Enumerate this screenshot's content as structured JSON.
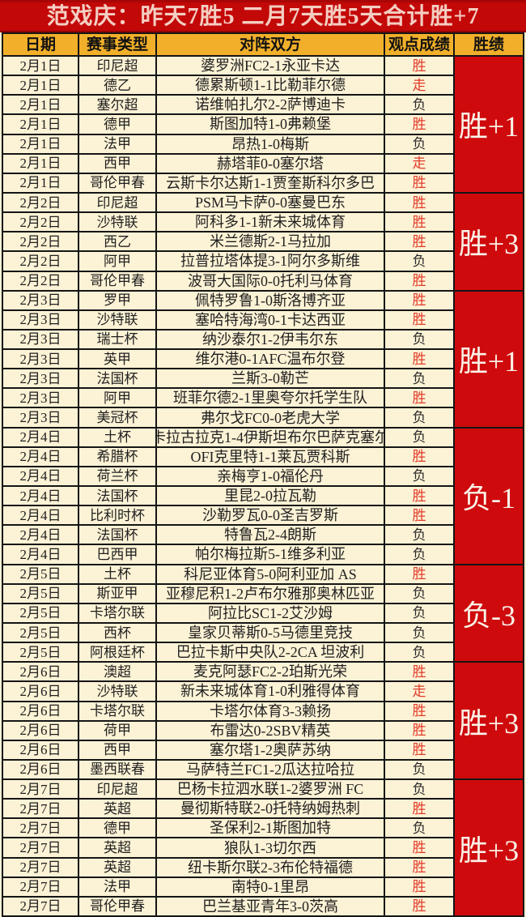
{
  "title": "范戏庆：昨天7胜5  二月7天胜5天合计胜+7",
  "colors": {
    "title_bg": "#C30808",
    "title_text": "#F4CEC2",
    "header_bg": "#F2B02A",
    "row_bg": "#FCF2D5",
    "grid_line": "#151515",
    "streak_block_bg": "#CF0A0D",
    "streak_block_text": "#FAF3E8",
    "result_win_text": "#E23A28",
    "result_loss_text": "#2A2A2A"
  },
  "chart_data": {
    "type": "table",
    "title": "范戏庆：昨天7胜5  二月7天胜5天合计胜+7",
    "columns": [
      "日期",
      "赛事类型",
      "对阵双方",
      "观点成绩",
      "胜绩"
    ],
    "rows": [
      {
        "date": "2月1日",
        "league": "印尼超",
        "match": "婆罗洲FC2-1永亚卡达",
        "result": "胜",
        "result_color": "red"
      },
      {
        "date": "2月1日",
        "league": "德乙",
        "match": "德累斯顿1-1比勒菲尔德",
        "result": "走",
        "result_color": "red"
      },
      {
        "date": "2月1日",
        "league": "塞尔超",
        "match": "诺维帕扎尔2-2萨博迪卡",
        "result": "负",
        "result_color": "black"
      },
      {
        "date": "2月1日",
        "league": "德甲",
        "match": "斯图加特1-0弗赖堡",
        "result": "胜",
        "result_color": "red"
      },
      {
        "date": "2月1日",
        "league": "法甲",
        "match": "昂热1-0梅斯",
        "result": "负",
        "result_color": "black"
      },
      {
        "date": "2月1日",
        "league": "西甲",
        "match": "赫塔菲0-0塞尔塔",
        "result": "走",
        "result_color": "red"
      },
      {
        "date": "2月1日",
        "league": "哥伦甲春",
        "match": "云斯卡尔达斯1-1贾奎斯科尔多巴",
        "result": "胜",
        "result_color": "red"
      },
      {
        "date": "2月2日",
        "league": "印尼超",
        "match": "PSM马卡萨0-0塞曼巴东",
        "result": "胜",
        "result_color": "red"
      },
      {
        "date": "2月2日",
        "league": "沙特联",
        "match": "阿科多1-1新未来城体育",
        "result": "胜",
        "result_color": "red"
      },
      {
        "date": "2月2日",
        "league": "西乙",
        "match": "米兰德斯2-1马拉加",
        "result": "胜",
        "result_color": "red"
      },
      {
        "date": "2月2日",
        "league": "阿甲",
        "match": "拉普拉塔体提3-1阿尔多斯维",
        "result": "负",
        "result_color": "black"
      },
      {
        "date": "2月2日",
        "league": "哥伦甲春",
        "match": "波哥大国际0-0托利马体育",
        "result": "胜",
        "result_color": "red"
      },
      {
        "date": "2月3日",
        "league": "罗甲",
        "match": "佩特罗鲁1-0斯洛博齐亚",
        "result": "胜",
        "result_color": "red"
      },
      {
        "date": "2月3日",
        "league": "沙特联",
        "match": "塞哈特海湾0-1卡达西亚",
        "result": "胜",
        "result_color": "red"
      },
      {
        "date": "2月3日",
        "league": "瑞士杯",
        "match": "纳沙泰尔1-2伊韦尔东",
        "result": "负",
        "result_color": "black"
      },
      {
        "date": "2月3日",
        "league": "英甲",
        "match": "维尔港0-1AFC温布尔登",
        "result": "胜",
        "result_color": "red"
      },
      {
        "date": "2月3日",
        "league": "法国杯",
        "match": "兰斯3-0勒芒",
        "result": "负",
        "result_color": "black"
      },
      {
        "date": "2月3日",
        "league": "阿甲",
        "match": "班菲尔德2-1里奥夸尔托学生队",
        "result": "胜",
        "result_color": "red"
      },
      {
        "date": "2月3日",
        "league": "美冠杯",
        "match": "弗尔戈FC0-0老虎大学",
        "result": "负",
        "result_color": "black"
      },
      {
        "date": "2月4日",
        "league": "土杯",
        "match": "卡拉古拉克1-4伊斯坦布尔巴萨克塞尔",
        "result": "负",
        "result_color": "black"
      },
      {
        "date": "2月4日",
        "league": "希腊杯",
        "match": "OFI克里特1-1莱瓦贾科斯",
        "result": "胜",
        "result_color": "red"
      },
      {
        "date": "2月4日",
        "league": "荷兰杯",
        "match": "亲梅亨1-0福伦丹",
        "result": "负",
        "result_color": "black"
      },
      {
        "date": "2月4日",
        "league": "法国杯",
        "match": "里昆2-0拉瓦勒",
        "result": "胜",
        "result_color": "red"
      },
      {
        "date": "2月4日",
        "league": "比利时杯",
        "match": "沙勒罗瓦0-0圣吉罗斯",
        "result": "胜",
        "result_color": "red"
      },
      {
        "date": "2月4日",
        "league": "法国杯",
        "match": "特鲁瓦2-4朗斯",
        "result": "负",
        "result_color": "black"
      },
      {
        "date": "2月4日",
        "league": "巴西甲",
        "match": "帕尔梅拉斯5-1维多利亚",
        "result": "负",
        "result_color": "black"
      },
      {
        "date": "2月5日",
        "league": "土杯",
        "match": "科尼亚体育5-0阿利亚加 AS",
        "result": "胜",
        "result_color": "red"
      },
      {
        "date": "2月5日",
        "league": "斯亚甲",
        "match": "亚穆尼积1-2卢布尔雅那奥林匹亚",
        "result": "负",
        "result_color": "black"
      },
      {
        "date": "2月5日",
        "league": "卡塔尔联",
        "match": "阿拉比SC1-2艾沙姆",
        "result": "负",
        "result_color": "black"
      },
      {
        "date": "2月5日",
        "league": "西杯",
        "match": "皇家贝蒂斯0-5马德里竞技",
        "result": "负",
        "result_color": "black"
      },
      {
        "date": "2月5日",
        "league": "阿根廷杯",
        "match": "巴拉卡斯中央队2-2CA 坦波利",
        "result": "负",
        "result_color": "black"
      },
      {
        "date": "2月6日",
        "league": "澳超",
        "match": "麦克阿瑟FC2-2珀斯光荣",
        "result": "胜",
        "result_color": "red"
      },
      {
        "date": "2月6日",
        "league": "沙特联",
        "match": "新未来城体育1-0利雅得体育",
        "result": "走",
        "result_color": "red"
      },
      {
        "date": "2月6日",
        "league": "卡塔尔联",
        "match": "卡塔尔体育3-3赖扬",
        "result": "胜",
        "result_color": "red"
      },
      {
        "date": "2月6日",
        "league": "荷甲",
        "match": "布雷达0-2SBV精英",
        "result": "胜",
        "result_color": "red"
      },
      {
        "date": "2月6日",
        "league": "西甲",
        "match": "塞尔塔1-2奥萨苏纳",
        "result": "胜",
        "result_color": "red"
      },
      {
        "date": "2月6日",
        "league": "墨西联春",
        "match": "马萨特兰FC1-2瓜达拉哈拉",
        "result": "负",
        "result_color": "black"
      },
      {
        "date": "2月7日",
        "league": "印尼超",
        "match": "巴杨卡拉泗水联1-2婆罗洲 FC",
        "result": "负",
        "result_color": "black"
      },
      {
        "date": "2月7日",
        "league": "英超",
        "match": "曼彻斯特联2-0托特纳姆热刺",
        "result": "胜",
        "result_color": "red"
      },
      {
        "date": "2月7日",
        "league": "德甲",
        "match": "圣保利2-1斯图加特",
        "result": "负",
        "result_color": "black"
      },
      {
        "date": "2月7日",
        "league": "英超",
        "match": "狼队1-3切尔西",
        "result": "胜",
        "result_color": "red"
      },
      {
        "date": "2月7日",
        "league": "英超",
        "match": "纽卡斯尔联2-3布伦特福德",
        "result": "胜",
        "result_color": "red"
      },
      {
        "date": "2月7日",
        "league": "法甲",
        "match": "南特0-1里昂",
        "result": "胜",
        "result_color": "red"
      },
      {
        "date": "2月7日",
        "league": "哥伦甲春",
        "match": "巴兰基亚青年3-0茨高",
        "result": "胜",
        "result_color": "red"
      }
    ],
    "groups": [
      {
        "label": "胜+1",
        "span": 7
      },
      {
        "label": "胜+3",
        "span": 5
      },
      {
        "label": "胜+1",
        "span": 7
      },
      {
        "label": "负-1",
        "span": 7
      },
      {
        "label": "负-3",
        "span": 5
      },
      {
        "label": "胜+3",
        "span": 6
      },
      {
        "label": "胜+3",
        "span": 7
      }
    ]
  }
}
